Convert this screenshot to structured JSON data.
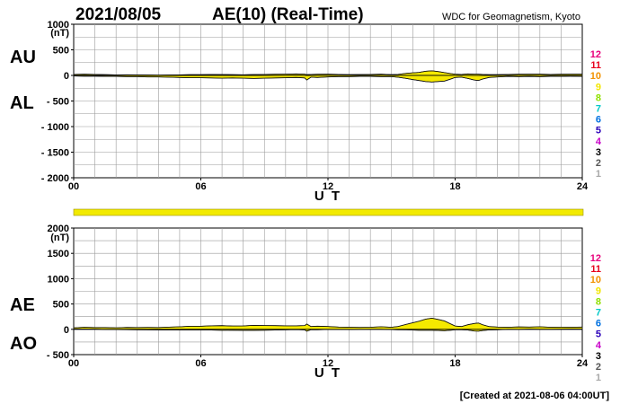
{
  "header": {
    "date": "2021/08/05",
    "title": "AE(10) (Real-Time)",
    "source": "WDC for Geomagnetism, Kyoto"
  },
  "footer": {
    "created": "[Created at 2021-08-06 04:00UT]"
  },
  "colors": {
    "fill": "#f5e900",
    "band": "#f2ea00",
    "grid": "#9a9a9a",
    "axis": "#000000"
  },
  "station_legend": [
    {
      "label": "12",
      "color": "#e8007c"
    },
    {
      "label": "11",
      "color": "#e8001c"
    },
    {
      "label": "10",
      "color": "#f29200"
    },
    {
      "label": "9",
      "color": "#f2e600"
    },
    {
      "label": "8",
      "color": "#90e000"
    },
    {
      "label": "7",
      "color": "#00c8c8"
    },
    {
      "label": "6",
      "color": "#0070e0"
    },
    {
      "label": "5",
      "color": "#2a00b8"
    },
    {
      "label": "4",
      "color": "#c800c8"
    },
    {
      "label": "3",
      "color": "#000000"
    },
    {
      "label": "2",
      "color": "#555555"
    },
    {
      "label": "1",
      "color": "#a8a8a8"
    }
  ],
  "chart_data": [
    {
      "type": "area",
      "panel": "AU/AL",
      "series_labels": [
        "AU",
        "AL"
      ],
      "unit": "(nT)",
      "xlabel": "U T",
      "xlim": [
        0,
        24
      ],
      "x_ticks": [
        "00",
        "06",
        "12",
        "18",
        "24"
      ],
      "x_tick_values": [
        0,
        6,
        12,
        18,
        24
      ],
      "ylim": [
        -2000,
        1000
      ],
      "y_ticks": [
        "1000",
        "500",
        "0",
        "- 500",
        "- 1000",
        "- 1500",
        "- 2000"
      ],
      "y_tick_values": [
        1000,
        500,
        0,
        -500,
        -1000,
        -1500,
        -2000
      ],
      "grid": true,
      "x": [
        0,
        0.5,
        1,
        1.5,
        2,
        2.5,
        3,
        3.5,
        4,
        4.5,
        5,
        5.5,
        6,
        6.5,
        7,
        7.5,
        8,
        8.5,
        9,
        9.5,
        10,
        10.5,
        10.9,
        11.0,
        11.2,
        11.5,
        12,
        12.5,
        13,
        13.5,
        14,
        14.5,
        15,
        15.3,
        15.7,
        16,
        16.3,
        16.6,
        16.9,
        17.2,
        17.5,
        17.8,
        18,
        18.3,
        18.6,
        18.9,
        19.1,
        19.3,
        19.6,
        20,
        20.5,
        21,
        21.5,
        22,
        22.5,
        23,
        23.5,
        24
      ],
      "series": [
        {
          "name": "AU",
          "values": [
            20,
            25,
            20,
            15,
            10,
            12,
            10,
            8,
            5,
            8,
            10,
            15,
            15,
            20,
            18,
            15,
            12,
            18,
            20,
            22,
            25,
            30,
            25,
            15,
            20,
            22,
            25,
            20,
            15,
            18,
            20,
            25,
            15,
            20,
            40,
            50,
            60,
            80,
            90,
            75,
            55,
            35,
            25,
            20,
            30,
            25,
            25,
            20,
            15,
            15,
            20,
            22,
            25,
            25,
            20,
            22,
            25,
            25
          ]
        },
        {
          "name": "AL",
          "values": [
            -10,
            -15,
            -15,
            -20,
            -20,
            -25,
            -25,
            -30,
            -30,
            -35,
            -40,
            -45,
            -45,
            -50,
            -55,
            -50,
            -55,
            -60,
            -55,
            -50,
            -45,
            -40,
            -50,
            -90,
            -35,
            -40,
            -30,
            -25,
            -25,
            -20,
            -20,
            -25,
            -25,
            -35,
            -60,
            -80,
            -100,
            -120,
            -130,
            -120,
            -110,
            -70,
            -40,
            -35,
            -60,
            -90,
            -100,
            -70,
            -40,
            -30,
            -20,
            -25,
            -20,
            -25,
            -20,
            -20,
            -15,
            -20
          ]
        }
      ]
    },
    {
      "type": "area",
      "panel": "AE/AO",
      "series_labels": [
        "AE",
        "AO"
      ],
      "unit": "(nT)",
      "xlabel": "U T",
      "xlim": [
        0,
        24
      ],
      "x_ticks": [
        "00",
        "06",
        "12",
        "18",
        "24"
      ],
      "x_tick_values": [
        0,
        6,
        12,
        18,
        24
      ],
      "ylim": [
        -500,
        2000
      ],
      "y_ticks": [
        "2000",
        "1500",
        "1000",
        "500",
        "0",
        "- 500"
      ],
      "y_tick_values": [
        2000,
        1500,
        1000,
        500,
        0,
        -500
      ],
      "grid": true,
      "x": [
        0,
        0.5,
        1,
        1.5,
        2,
        2.5,
        3,
        3.5,
        4,
        4.5,
        5,
        5.5,
        6,
        6.5,
        7,
        7.5,
        8,
        8.5,
        9,
        9.5,
        10,
        10.5,
        10.9,
        11.0,
        11.2,
        11.5,
        12,
        12.5,
        13,
        13.5,
        14,
        14.5,
        15,
        15.3,
        15.7,
        16,
        16.3,
        16.6,
        16.9,
        17.2,
        17.5,
        17.8,
        18,
        18.3,
        18.6,
        18.9,
        19.1,
        19.3,
        19.6,
        20,
        20.5,
        21,
        21.5,
        22,
        22.5,
        23,
        23.5,
        24
      ],
      "series": [
        {
          "name": "AE",
          "values": [
            30,
            40,
            35,
            35,
            30,
            37,
            35,
            38,
            35,
            43,
            50,
            60,
            60,
            70,
            73,
            65,
            67,
            78,
            75,
            72,
            70,
            70,
            75,
            105,
            55,
            62,
            55,
            45,
            40,
            38,
            40,
            50,
            40,
            55,
            100,
            130,
            160,
            200,
            220,
            195,
            165,
            105,
            65,
            55,
            90,
            115,
            125,
            90,
            55,
            45,
            40,
            47,
            45,
            50,
            40,
            42,
            40,
            45
          ]
        },
        {
          "name": "AO",
          "values": [
            5,
            5,
            3,
            -3,
            -5,
            -7,
            -8,
            -11,
            -13,
            -14,
            -15,
            -15,
            -15,
            -15,
            -19,
            -18,
            -22,
            -21,
            -18,
            -14,
            -10,
            -5,
            -13,
            -38,
            -8,
            -9,
            -3,
            -3,
            -5,
            -1,
            0,
            0,
            -5,
            -8,
            -10,
            -15,
            -20,
            -20,
            -20,
            -23,
            -28,
            -18,
            -8,
            -8,
            -15,
            -33,
            -38,
            -25,
            -13,
            -8,
            0,
            -2,
            3,
            0,
            0,
            1,
            5,
            3
          ]
        }
      ]
    }
  ]
}
